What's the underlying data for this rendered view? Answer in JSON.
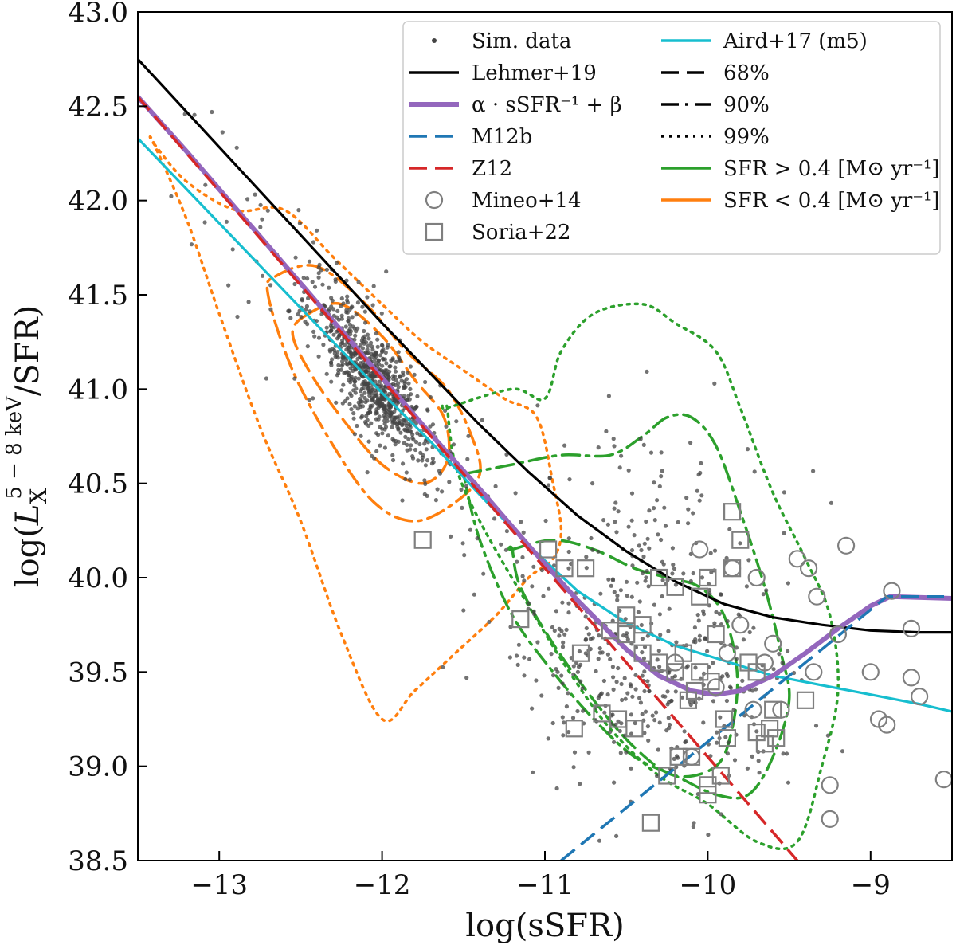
{
  "chart_data": {
    "type": "scatter",
    "title": "",
    "xlabel": "log(sSFR)",
    "ylabel_parts": [
      "log(",
      "L",
      "X",
      "5 − 8 keV",
      "/SFR)"
    ],
    "xlim": [
      -13.5,
      -8.5
    ],
    "ylim": [
      38.5,
      43.0
    ],
    "xticks": [
      -13,
      -12,
      -11,
      -10,
      -9
    ],
    "xtick_labels": [
      "−13",
      "−12",
      "−11",
      "−10",
      "−9"
    ],
    "yticks": [
      38.5,
      39.0,
      39.5,
      40.0,
      40.5,
      41.0,
      41.5,
      42.0,
      42.5,
      43.0
    ],
    "ytick_labels": [
      "38.5",
      "39.0",
      "39.5",
      "40.0",
      "40.5",
      "41.0",
      "41.5",
      "42.0",
      "42.5",
      "43.0"
    ],
    "grid": false,
    "legend_position": "top-right",
    "legend": [
      {
        "label": "Sim. data",
        "style": "dot"
      },
      {
        "label": "Lehmer+19",
        "style": "line"
      },
      {
        "label": "α · sSFR⁻¹ + β",
        "style": "line"
      },
      {
        "label": "M12b",
        "style": "dashed"
      },
      {
        "label": "Z12",
        "style": "dashed"
      },
      {
        "label": "Mineo+14",
        "style": "circle"
      },
      {
        "label": "Soria+22",
        "style": "square"
      },
      {
        "label": "Aird+17 (m5)",
        "style": "line"
      },
      {
        "label": "68%",
        "style": "dashed"
      },
      {
        "label": "90%",
        "style": "dashdot"
      },
      {
        "label": "99%",
        "style": "dotted"
      },
      {
        "label": "SFR > 0.4 [M⊙ yr⁻¹]",
        "style": "line"
      },
      {
        "label": "SFR < 0.4 [M⊙ yr⁻¹]",
        "style": "line"
      }
    ],
    "colors": {
      "sim": "#444444",
      "lehmer": "#000000",
      "fit": "#9467bd",
      "m12b": "#1f77b4",
      "z12": "#d62728",
      "aird": "#17becf",
      "green": "#2ca02c",
      "orange": "#ff7f0e",
      "marker": "#7f7f7f"
    },
    "lines": {
      "lehmer": {
        "x": [
          -13.5,
          -13.2,
          -12.9,
          -12.6,
          -12.3,
          -12.0,
          -11.7,
          -11.4,
          -11.1,
          -10.8,
          -10.5,
          -10.2,
          -9.9,
          -9.6,
          -9.3,
          -9.0,
          -8.7,
          -8.5
        ],
        "y": [
          42.75,
          42.47,
          42.19,
          41.91,
          41.63,
          41.35,
          41.08,
          40.81,
          40.56,
          40.33,
          40.14,
          39.98,
          39.86,
          39.79,
          39.75,
          39.72,
          39.71,
          39.71
        ]
      },
      "fit": {
        "x": [
          -13.5,
          -13.2,
          -12.9,
          -12.6,
          -12.3,
          -12.0,
          -11.7,
          -11.4,
          -11.1,
          -10.8,
          -10.5,
          -10.3,
          -10.1,
          -9.95,
          -9.8,
          -9.6,
          -9.4,
          -9.2,
          -9.0,
          -8.88,
          -8.5
        ],
        "y": [
          42.55,
          42.26,
          41.96,
          41.66,
          41.36,
          41.06,
          40.76,
          40.47,
          40.17,
          39.88,
          39.62,
          39.48,
          39.4,
          39.38,
          39.4,
          39.48,
          39.6,
          39.73,
          39.85,
          39.9,
          39.89
        ]
      },
      "m12b": {
        "x": [
          -10.9,
          -8.9,
          -8.5
        ],
        "y": [
          38.5,
          39.9,
          39.9
        ]
      },
      "z12": {
        "x": [
          -13.5,
          -9.45
        ],
        "y": [
          42.55,
          38.5
        ]
      },
      "aird": {
        "x": [
          -13.5,
          -13.2,
          -12.9,
          -12.6,
          -12.3,
          -12.0,
          -11.7,
          -11.4,
          -11.1,
          -10.8,
          -10.5,
          -10.2,
          -9.9,
          -9.6,
          -9.3,
          -9.0,
          -8.7,
          -8.5
        ],
        "y": [
          42.33,
          42.06,
          41.79,
          41.52,
          41.25,
          40.98,
          40.72,
          40.44,
          40.17,
          39.93,
          39.76,
          39.64,
          39.56,
          39.48,
          39.43,
          39.38,
          39.33,
          39.29
        ]
      }
    },
    "contours": [
      {
        "group": "SFR < 0.4",
        "level": "99%",
        "x": [
          -13.4,
          -13.2,
          -12.9,
          -12.6,
          -12.3,
          -12.0,
          -11.75,
          -11.5,
          -11.25,
          -11.05,
          -10.95,
          -10.9,
          -10.95,
          -11.1,
          -11.3,
          -11.55,
          -11.8,
          -12.0,
          -12.25,
          -12.5,
          -12.75,
          -13.0,
          -13.2,
          -13.4
        ],
        "y": [
          42.3,
          42.1,
          41.95,
          41.95,
          41.7,
          41.45,
          41.25,
          41.1,
          40.95,
          40.85,
          40.5,
          40.25,
          40.1,
          40.0,
          39.8,
          39.6,
          39.4,
          39.25,
          39.7,
          40.3,
          40.8,
          41.4,
          41.9,
          42.3
        ]
      },
      {
        "group": "SFR < 0.4",
        "level": "90%",
        "x": [
          -12.65,
          -12.4,
          -12.1,
          -11.85,
          -11.6,
          -11.45,
          -11.4,
          -11.55,
          -11.8,
          -12.05,
          -12.3,
          -12.55,
          -12.7
        ],
        "y": [
          41.6,
          41.65,
          41.45,
          41.2,
          41.0,
          40.75,
          40.55,
          40.4,
          40.3,
          40.4,
          40.7,
          41.1,
          41.5
        ]
      },
      {
        "group": "SFR < 0.4",
        "level": "68%",
        "x": [
          -12.45,
          -12.25,
          -12.0,
          -11.8,
          -11.62,
          -11.6,
          -11.75,
          -12.0,
          -12.25,
          -12.45,
          -12.55
        ],
        "y": [
          41.4,
          41.45,
          41.28,
          41.05,
          40.85,
          40.62,
          40.5,
          40.6,
          40.85,
          41.1,
          41.3
        ]
      },
      {
        "group": "SFR > 0.4",
        "level": "99%",
        "x": [
          -11.6,
          -11.2,
          -11.0,
          -10.9,
          -10.7,
          -10.4,
          -10.2,
          -9.95,
          -9.8,
          -9.6,
          -9.4,
          -9.25,
          -9.2,
          -9.3,
          -9.45,
          -9.7,
          -10.0,
          -10.3,
          -10.6,
          -10.85,
          -11.1,
          -11.4,
          -11.55,
          -11.6
        ],
        "y": [
          40.9,
          41.0,
          40.95,
          41.2,
          41.4,
          41.45,
          41.35,
          41.2,
          40.9,
          40.45,
          40.1,
          39.8,
          39.4,
          39.0,
          38.6,
          38.6,
          38.8,
          38.95,
          39.2,
          39.5,
          39.85,
          40.3,
          40.6,
          40.9
        ]
      },
      {
        "group": "SFR > 0.4",
        "level": "90%",
        "x": [
          -11.5,
          -11.2,
          -10.9,
          -10.6,
          -10.4,
          -10.25,
          -10.1,
          -9.95,
          -9.8,
          -9.65,
          -9.55,
          -9.5,
          -9.6,
          -9.75,
          -9.95,
          -10.2,
          -10.45,
          -10.7,
          -10.95,
          -11.2,
          -11.4,
          -11.5
        ],
        "y": [
          40.55,
          40.6,
          40.65,
          40.65,
          40.75,
          40.85,
          40.85,
          40.7,
          40.35,
          39.95,
          39.6,
          39.35,
          39.05,
          38.85,
          38.85,
          38.95,
          39.05,
          39.25,
          39.5,
          39.8,
          40.2,
          40.55
        ]
      },
      {
        "group": "SFR > 0.4",
        "level": "68%",
        "x": [
          -11.2,
          -10.95,
          -10.7,
          -10.45,
          -10.25,
          -10.05,
          -9.9,
          -9.82,
          -9.85,
          -9.95,
          -10.2,
          -10.45,
          -10.7,
          -10.95,
          -11.15,
          -11.2
        ],
        "y": [
          40.15,
          40.2,
          40.15,
          40.05,
          40.0,
          39.95,
          39.8,
          39.5,
          39.2,
          39.0,
          38.95,
          39.1,
          39.35,
          39.65,
          39.95,
          40.15
        ]
      }
    ],
    "series": [
      {
        "label": "Mineo+14",
        "marker": "circle",
        "x": [
          -10.05,
          -9.85,
          -9.7,
          -9.45,
          -9.38,
          -9.33,
          -9.15,
          -8.87,
          -8.75,
          -8.75,
          -8.95,
          -9.0,
          -9.25,
          -9.25,
          -9.2,
          -9.6,
          -9.55,
          -9.72,
          -9.88,
          -9.95,
          -10.1,
          -9.35,
          -8.9,
          -8.7,
          -8.55,
          -9.8,
          -9.65,
          -10.2
        ],
        "y": [
          40.15,
          40.05,
          40.0,
          40.1,
          40.05,
          39.9,
          40.17,
          39.93,
          39.73,
          39.47,
          39.25,
          39.5,
          38.9,
          38.72,
          39.7,
          39.65,
          39.3,
          39.3,
          39.6,
          39.42,
          39.05,
          39.5,
          39.22,
          39.37,
          38.93,
          39.75,
          39.55,
          39.55
        ]
      },
      {
        "label": "Soria+22",
        "marker": "square",
        "x": [
          -11.75,
          -11.15,
          -10.98,
          -10.88,
          -10.75,
          -10.6,
          -10.5,
          -10.4,
          -10.3,
          -10.2,
          -10.15,
          -10.05,
          -10.0,
          -9.95,
          -9.85,
          -9.8,
          -9.75,
          -9.7,
          -9.62,
          -9.58,
          -9.4,
          -10.35,
          -10.25,
          -10.1,
          -10.0,
          -9.92,
          -9.88,
          -10.45,
          -10.55,
          -10.65,
          -10.78,
          -10.82,
          -10.3,
          -10.2,
          -10.12,
          -10.05,
          -9.98,
          -9.9,
          -10.4,
          -10.5,
          -9.65,
          -9.7,
          -9.6,
          -9.85,
          -10.18,
          -10.08,
          -10.0
        ],
        "y": [
          40.2,
          39.78,
          40.15,
          40.05,
          40.05,
          39.72,
          39.8,
          39.75,
          39.55,
          39.5,
          39.6,
          39.9,
          40.0,
          39.7,
          40.35,
          40.2,
          39.55,
          39.5,
          39.2,
          39.15,
          39.35,
          38.7,
          38.95,
          39.05,
          38.85,
          38.95,
          39.15,
          39.2,
          39.25,
          39.28,
          39.6,
          39.2,
          40.0,
          39.95,
          39.35,
          39.5,
          39.45,
          39.25,
          39.6,
          39.7,
          39.12,
          39.18,
          39.3,
          40.05,
          39.05,
          39.4,
          38.9
        ]
      }
    ]
  }
}
